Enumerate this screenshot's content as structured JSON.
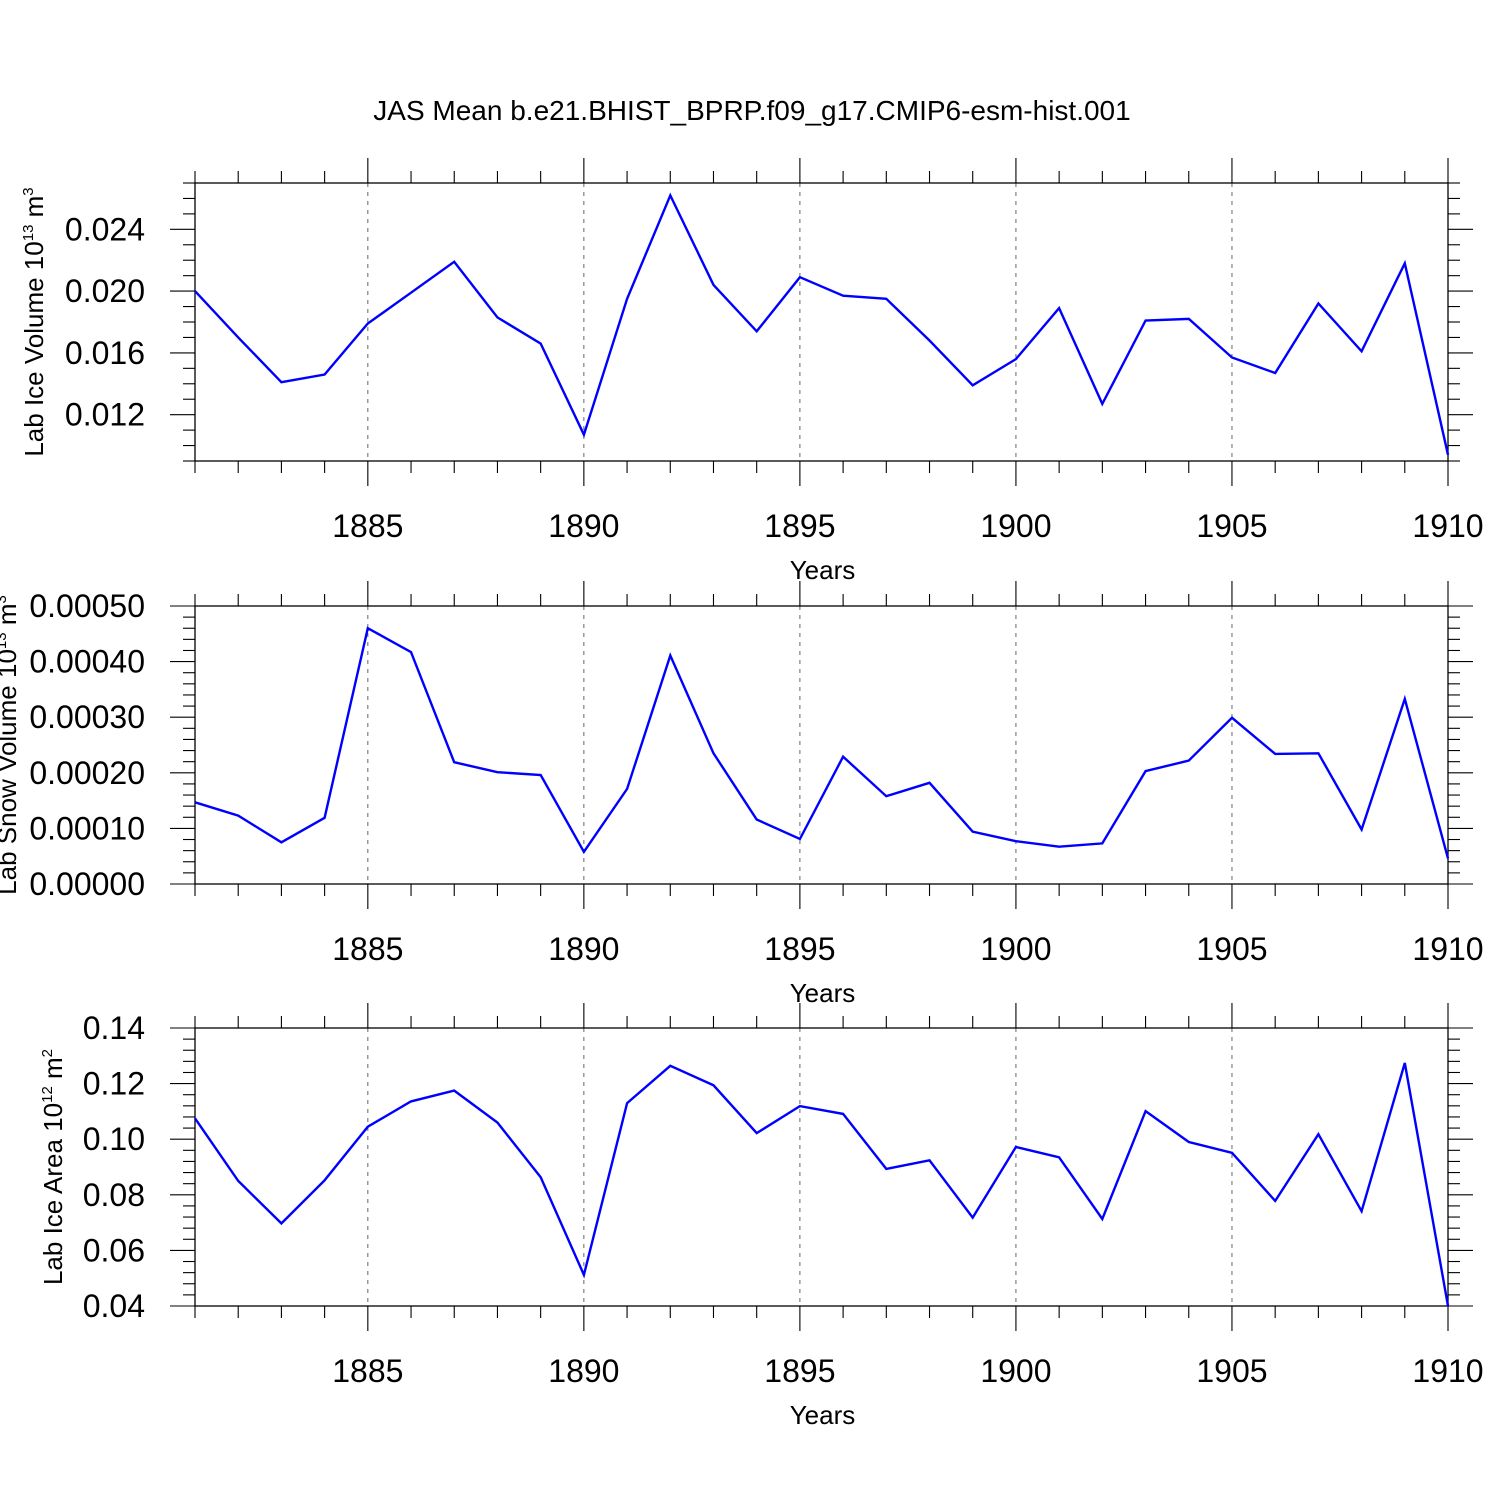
{
  "title": "JAS Mean b.e21.BHIST_BPRP.f09_g17.CMIP6-esm-hist.001",
  "line_color": "#0000ff",
  "chart_data": [
    {
      "type": "line",
      "title": "JAS Mean b.e21.BHIST_BPRP.f09_g17.CMIP6-esm-hist.001",
      "xlabel": "Years",
      "ylabel_main": "Lab Ice Volume 10",
      "ylabel_sup": "13",
      "ylabel_unit": " m",
      "ylabel_unit_sup": "3",
      "xlim": [
        1881,
        1910
      ],
      "ylim": [
        0.009,
        0.027
      ],
      "xticks": [
        1885,
        1890,
        1895,
        1900,
        1905,
        1910
      ],
      "xtick_labels": [
        "1885",
        "1890",
        "1895",
        "1900",
        "1905",
        "1910"
      ],
      "yticks": [
        0.012,
        0.016,
        0.02,
        0.024
      ],
      "ytick_labels": [
        "0.012",
        "0.016",
        "0.020",
        "0.024"
      ],
      "minor_y_step": 0.001,
      "grid": "vertical dashed at major x ticks",
      "x": [
        1881,
        1882,
        1883,
        1884,
        1885,
        1886,
        1887,
        1888,
        1889,
        1890,
        1891,
        1892,
        1893,
        1894,
        1895,
        1896,
        1897,
        1898,
        1899,
        1900,
        1901,
        1902,
        1903,
        1904,
        1905,
        1906,
        1907,
        1908,
        1909,
        1910
      ],
      "series": [
        {
          "name": "Lab Ice Volume",
          "values": [
            0.02,
            0.017,
            0.0141,
            0.0146,
            0.0179,
            0.0199,
            0.0219,
            0.0183,
            0.0166,
            0.0107,
            0.0195,
            0.0262,
            0.0204,
            0.0174,
            0.0209,
            0.0197,
            0.0195,
            0.0168,
            0.0139,
            0.0156,
            0.0189,
            0.0127,
            0.0181,
            0.0182,
            0.0157,
            0.0147,
            0.0192,
            0.0161,
            0.0218,
            0.0094
          ]
        }
      ]
    },
    {
      "type": "line",
      "xlabel": "Years",
      "ylabel_main": "Lab Snow Volume 10",
      "ylabel_sup": "13",
      "ylabel_unit": " m",
      "ylabel_unit_sup": "3",
      "xlim": [
        1881,
        1910
      ],
      "ylim": [
        0.0,
        0.0005
      ],
      "xticks": [
        1885,
        1890,
        1895,
        1900,
        1905,
        1910
      ],
      "xtick_labels": [
        "1885",
        "1890",
        "1895",
        "1900",
        "1905",
        "1910"
      ],
      "yticks": [
        0.0,
        0.0001,
        0.0002,
        0.0003,
        0.0004,
        0.0005
      ],
      "ytick_labels": [
        "0.00000",
        "0.00010",
        "0.00020",
        "0.00030",
        "0.00040",
        "0.00050"
      ],
      "minor_y_step": 2e-05,
      "grid": "vertical dashed at major x ticks",
      "x": [
        1881,
        1882,
        1883,
        1884,
        1885,
        1886,
        1887,
        1888,
        1889,
        1890,
        1891,
        1892,
        1893,
        1894,
        1895,
        1896,
        1897,
        1898,
        1899,
        1900,
        1901,
        1902,
        1903,
        1904,
        1905,
        1906,
        1907,
        1908,
        1909,
        1910
      ],
      "series": [
        {
          "name": "Lab Snow Volume",
          "values": [
            0.000147,
            0.000123,
            7.5e-05,
            0.000119,
            0.00046,
            0.000417,
            0.000219,
            0.000201,
            0.000196,
            5.8e-05,
            0.000171,
            0.000411,
            0.000235,
            0.000116,
            8.1e-05,
            0.000229,
            0.000158,
            0.000182,
            9.4e-05,
            7.7e-05,
            6.7e-05,
            7.3e-05,
            0.000203,
            0.000222,
            0.000299,
            0.000234,
            0.000235,
            9.8e-05,
            0.000333,
            4.6e-05
          ]
        }
      ]
    },
    {
      "type": "line",
      "xlabel": "Years",
      "ylabel_main": "Lab Ice Area 10",
      "ylabel_sup": "12",
      "ylabel_unit": " m",
      "ylabel_unit_sup": "2",
      "xlim": [
        1881,
        1910
      ],
      "ylim": [
        0.04,
        0.14
      ],
      "xticks": [
        1885,
        1890,
        1895,
        1900,
        1905,
        1910
      ],
      "xtick_labels": [
        "1885",
        "1890",
        "1895",
        "1900",
        "1905",
        "1910"
      ],
      "yticks": [
        0.04,
        0.06,
        0.08,
        0.1,
        0.12,
        0.14
      ],
      "ytick_labels": [
        "0.04",
        "0.06",
        "0.08",
        "0.10",
        "0.12",
        "0.14"
      ],
      "minor_y_step": 0.004,
      "grid": "vertical dashed at major x ticks",
      "x": [
        1881,
        1882,
        1883,
        1884,
        1885,
        1886,
        1887,
        1888,
        1889,
        1890,
        1891,
        1892,
        1893,
        1894,
        1895,
        1896,
        1897,
        1898,
        1899,
        1900,
        1901,
        1902,
        1903,
        1904,
        1905,
        1906,
        1907,
        1908,
        1909,
        1910
      ],
      "series": [
        {
          "name": "Lab Ice Area",
          "values": [
            0.1075,
            0.085,
            0.0697,
            0.0852,
            0.1045,
            0.1136,
            0.1175,
            0.106,
            0.0863,
            0.0512,
            0.113,
            0.1264,
            0.1194,
            0.1022,
            0.1119,
            0.1091,
            0.0893,
            0.0924,
            0.0718,
            0.0972,
            0.0935,
            0.0713,
            0.1101,
            0.099,
            0.0951,
            0.0778,
            0.1018,
            0.0741,
            0.1274,
            0.04
          ]
        }
      ]
    }
  ]
}
